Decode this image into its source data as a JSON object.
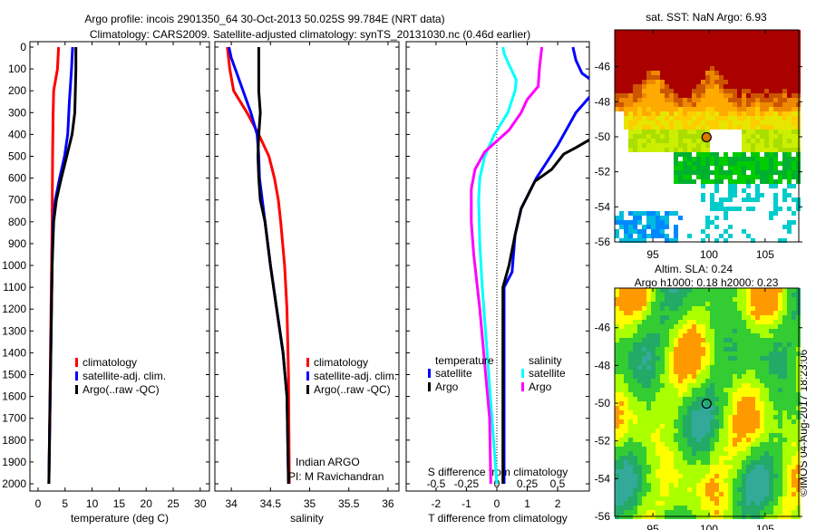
{
  "title": {
    "line1": "Argo profile: incois 2901350_64 30-Oct-2013 50.025S 99.784E (NRT data)",
    "line2": "Climatology: CARS2009. Satellite-adjusted climatology: synTS_20131030.nc (0.46d earlier)"
  },
  "colors": {
    "clim": "#ff0000",
    "sat": "#0000ff",
    "argo": "#000000",
    "sat_s": "#00ffff",
    "argo_s": "#ff00ff"
  },
  "depth_ticks": [
    "0",
    "100",
    "200",
    "300",
    "400",
    "500",
    "600",
    "700",
    "800",
    "900",
    "1000",
    "1100",
    "1200",
    "1300",
    "1400",
    "1500",
    "1600",
    "1700",
    "1800",
    "1900",
    "2000"
  ],
  "credit": "©IMOS 04-Aug-2017 18:23:06",
  "chart_data": [
    {
      "type": "line",
      "name": "temperature",
      "xlabel": "temperature (deg C)",
      "xlim": [
        -1.5,
        31.7
      ],
      "ylim": [
        2060,
        -20
      ],
      "xticks": [
        "0",
        "5",
        "10",
        "15",
        "20",
        "25",
        "30"
      ],
      "legend": [
        "climatology",
        "satellite-adj. clim.",
        "Argo(..raw -QC)"
      ],
      "series": [
        {
          "name": "climatology",
          "color": "clim",
          "points": [
            [
              3.8,
              0
            ],
            [
              3.6,
              100
            ],
            [
              2.9,
              200
            ],
            [
              2.8,
              300
            ],
            [
              2.7,
              500
            ],
            [
              2.6,
              800
            ],
            [
              2.4,
              1200
            ],
            [
              2.2,
              1600
            ],
            [
              2.0,
              2000
            ]
          ]
        },
        {
          "name": "satellite-adj. clim.",
          "color": "sat",
          "points": [
            [
              6.4,
              0
            ],
            [
              6.2,
              100
            ],
            [
              5.8,
              250
            ],
            [
              5.5,
              400
            ],
            [
              4.9,
              500
            ],
            [
              4.0,
              600
            ],
            [
              3.2,
              700
            ],
            [
              2.8,
              800
            ],
            [
              2.6,
              1000
            ],
            [
              2.3,
              1500
            ],
            [
              2.0,
              2000
            ]
          ]
        },
        {
          "name": "Argo",
          "color": "argo",
          "points": [
            [
              7.0,
              0
            ],
            [
              7.0,
              100
            ],
            [
              6.8,
              300
            ],
            [
              6.3,
              400
            ],
            [
              5.3,
              500
            ],
            [
              4.3,
              600
            ],
            [
              3.4,
              700
            ],
            [
              2.9,
              800
            ],
            [
              2.6,
              1000
            ],
            [
              2.3,
              1500
            ],
            [
              2.0,
              2000
            ]
          ]
        }
      ]
    },
    {
      "type": "line",
      "name": "salinity",
      "xlabel": "salinity",
      "xlim": [
        33.79,
        36.14
      ],
      "ylim": [
        2060,
        -20
      ],
      "xticks": [
        "34",
        "34.5",
        "35",
        "35.5",
        "36"
      ],
      "legend": [
        "climatology",
        "satellite-adj. clim.",
        "Argo(..raw -QC)"
      ],
      "annotation": [
        "Indian ARGO",
        "PI: M Ravichandran"
      ],
      "series": [
        {
          "name": "climatology",
          "color": "clim",
          "points": [
            [
              33.95,
              0
            ],
            [
              33.98,
              100
            ],
            [
              34.03,
              200
            ],
            [
              34.2,
              300
            ],
            [
              34.35,
              400
            ],
            [
              34.48,
              500
            ],
            [
              34.55,
              600
            ],
            [
              34.6,
              700
            ],
            [
              34.63,
              800
            ],
            [
              34.68,
              1000
            ],
            [
              34.71,
              1200
            ],
            [
              34.73,
              1500
            ],
            [
              34.74,
              2000
            ]
          ]
        },
        {
          "name": "satellite-adj. clim.",
          "color": "sat",
          "points": [
            [
              33.97,
              0
            ],
            [
              34.0,
              50
            ],
            [
              34.05,
              100
            ],
            [
              34.15,
              200
            ],
            [
              34.25,
              300
            ],
            [
              34.33,
              400
            ],
            [
              34.35,
              500
            ],
            [
              34.36,
              600
            ],
            [
              34.43,
              800
            ],
            [
              34.5,
              1000
            ],
            [
              34.58,
              1200
            ],
            [
              34.66,
              1400
            ],
            [
              34.71,
              1600
            ],
            [
              34.73,
              2000
            ]
          ]
        },
        {
          "name": "Argo",
          "color": "argo",
          "points": [
            [
              34.35,
              0
            ],
            [
              34.35,
              200
            ],
            [
              34.37,
              300
            ],
            [
              34.35,
              400
            ],
            [
              34.34,
              500
            ],
            [
              34.35,
              600
            ],
            [
              34.37,
              700
            ],
            [
              34.43,
              800
            ],
            [
              34.5,
              1000
            ],
            [
              34.58,
              1200
            ],
            [
              34.66,
              1400
            ],
            [
              34.71,
              1600
            ],
            [
              34.73,
              2000
            ]
          ]
        }
      ]
    },
    {
      "type": "line",
      "name": "difference",
      "xlabel": "T difference from climatology",
      "xlabel2": "S difference from climatology",
      "xlim": [
        -2.98,
        3.04
      ],
      "s_xlim": [
        -0.746,
        0.761
      ],
      "ylim": [
        2060,
        -20
      ],
      "xticks": [
        "-2",
        "-1",
        "0",
        "1",
        "2"
      ],
      "s_xticks": [
        "-0.5",
        "-0.25",
        "0",
        "0.25",
        "0.5"
      ],
      "legend_t": {
        "title": "temperature",
        "items": [
          "satellite",
          "Argo"
        ]
      },
      "legend_s": {
        "title": "salinity",
        "items": [
          "satellite",
          "Argo"
        ]
      },
      "series": [
        {
          "name": "T satellite",
          "color": "sat",
          "axis": "t",
          "points": [
            [
              2.5,
              0
            ],
            [
              2.6,
              60
            ],
            [
              2.8,
              120
            ],
            [
              3.1,
              150
            ]
          ]
        },
        {
          "name": "T satellite (deep)",
          "color": "sat",
          "axis": "t",
          "points": [
            [
              3.1,
              220
            ],
            [
              2.6,
              300
            ],
            [
              2.0,
              450
            ],
            [
              1.3,
              600
            ],
            [
              0.8,
              740
            ],
            [
              0.6,
              860
            ],
            [
              0.5,
              1030
            ],
            [
              0.24,
              1100
            ],
            [
              0.24,
              1500
            ],
            [
              0.24,
              2000
            ]
          ]
        },
        {
          "name": "T Argo",
          "color": "argo",
          "axis": "t",
          "points": [
            [
              3.1,
              420
            ],
            [
              2.6,
              460
            ],
            [
              2.2,
              490
            ],
            [
              1.8,
              560
            ],
            [
              1.25,
              615
            ],
            [
              0.8,
              740
            ],
            [
              0.6,
              860
            ],
            [
              0.4,
              1000
            ],
            [
              0.2,
              1100
            ],
            [
              0.2,
              2000
            ]
          ]
        },
        {
          "name": "S satellite",
          "color": "sat_s",
          "axis": "s",
          "points": [
            [
              0.05,
              0
            ],
            [
              0.06,
              30
            ],
            [
              0.1,
              80
            ],
            [
              0.16,
              150
            ],
            [
              0.15,
              200
            ],
            [
              0.09,
              300
            ],
            [
              -0.02,
              400
            ],
            [
              -0.1,
              500
            ],
            [
              -0.14,
              600
            ],
            [
              -0.15,
              700
            ],
            [
              -0.14,
              900
            ],
            [
              -0.12,
              1100
            ],
            [
              -0.08,
              1400
            ],
            [
              -0.04,
              1700
            ],
            [
              0.0,
              2000
            ]
          ]
        },
        {
          "name": "S Argo",
          "color": "argo_s",
          "axis": "s",
          "points": [
            [
              0.37,
              0
            ],
            [
              0.35,
              100
            ],
            [
              0.34,
              180
            ],
            [
              0.25,
              240
            ],
            [
              0.2,
              300
            ],
            [
              0.1,
              380
            ],
            [
              -0.1,
              480
            ],
            [
              -0.18,
              560
            ],
            [
              -0.21,
              650
            ],
            [
              -0.21,
              800
            ],
            [
              -0.19,
              950
            ],
            [
              -0.14,
              1200
            ],
            [
              -0.1,
              1450
            ],
            [
              -0.06,
              1700
            ],
            [
              -0.05,
              2000
            ]
          ]
        }
      ]
    },
    {
      "type": "heatmap",
      "name": "sst-map",
      "title": "sat. SST: NaN Argo: 6.93",
      "xlim": [
        91.6,
        108
      ],
      "ylim": [
        -56,
        -43.9
      ],
      "xticks": [
        "95",
        "100",
        "105"
      ],
      "yticks": [
        "-46",
        "-48",
        "-50",
        "-52",
        "-54",
        "-56"
      ],
      "marker": [
        99.784,
        -50.025
      ]
    },
    {
      "type": "heatmap",
      "name": "sla-map",
      "title": "Altim. SLA: 0.24",
      "subtitle": "Argo h1000: 0.18 h2000: 0.23",
      "xlim": [
        91.6,
        108
      ],
      "ylim": [
        -56,
        -43.9
      ],
      "xticks": [
        "95",
        "100",
        "105"
      ],
      "yticks": [
        "-46",
        "-48",
        "-50",
        "-52",
        "-54",
        "-56"
      ],
      "marker": [
        99.784,
        -50.025
      ]
    }
  ]
}
